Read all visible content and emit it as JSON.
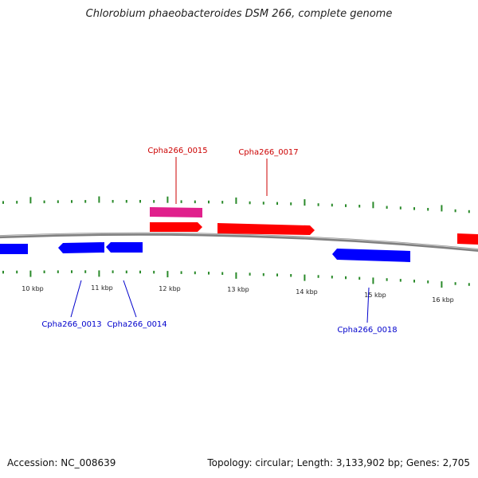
{
  "title": "Chlorobium phaeobacteroides DSM 266, complete genome",
  "footer": {
    "accession": "Accession: NC_008639",
    "summary": "Topology: circular; Length: 3,133,902 bp; Genes: 2,705"
  },
  "colors": {
    "backbone": "#808080",
    "ticks": "#2a8a2a",
    "forward_gene": "#ff0000",
    "reverse_gene": "#0000ff",
    "rna_gene": "#e0208c"
  },
  "scale": {
    "labels": [
      "10 kbp",
      "11 kbp",
      "12 kbp",
      "13 kbp",
      "14 kbp",
      "15 kbp",
      "16 kbp"
    ]
  },
  "genes": [
    {
      "label": "Cpha266_0013",
      "strand": "reverse"
    },
    {
      "label": "Cpha266_0014",
      "strand": "reverse"
    },
    {
      "label": "Cpha266_0015",
      "strand": "forward"
    },
    {
      "label": "Cpha266_0017",
      "strand": "forward"
    },
    {
      "label": "Cpha266_0018",
      "strand": "reverse"
    }
  ]
}
